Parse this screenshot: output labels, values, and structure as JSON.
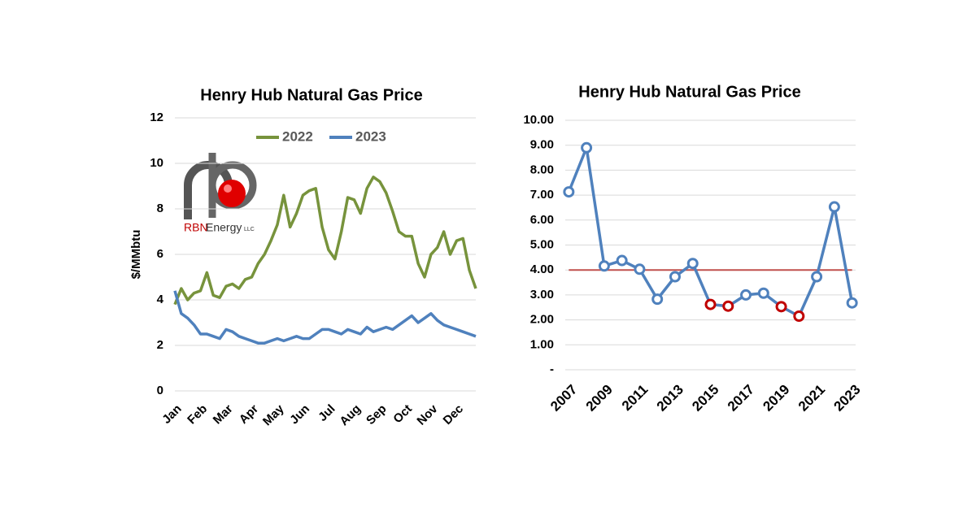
{
  "logo": {
    "name": "RBN",
    "text": "Energy",
    "suffix": "LLC"
  },
  "chart_data": [
    {
      "type": "line",
      "title": "Henry Hub Natural Gas Price",
      "y_label": "$/MMbtu",
      "categories": [
        "Jan",
        null,
        null,
        null,
        "Feb",
        null,
        null,
        null,
        "Mar",
        null,
        null,
        null,
        "Apr",
        null,
        null,
        null,
        "May",
        null,
        null,
        null,
        "Jun",
        null,
        null,
        null,
        "Jul",
        null,
        null,
        null,
        "Aug",
        null,
        null,
        null,
        "Sep",
        null,
        null,
        null,
        "Oct",
        null,
        null,
        null,
        "Nov",
        null,
        null,
        null,
        "Dec",
        null,
        null,
        null
      ],
      "series": [
        {
          "name": "2022",
          "color": "#77933c",
          "values": [
            3.8,
            4.5,
            4.0,
            4.3,
            4.4,
            5.2,
            4.2,
            4.1,
            4.6,
            4.7,
            4.5,
            4.9,
            5.0,
            5.6,
            6.0,
            6.6,
            7.3,
            8.6,
            7.2,
            7.8,
            8.6,
            8.8,
            8.9,
            7.2,
            6.2,
            5.8,
            7.0,
            8.5,
            8.4,
            7.8,
            8.9,
            9.4,
            9.2,
            8.7,
            7.9,
            7.0,
            6.8,
            6.8,
            5.6,
            5.0,
            6.0,
            6.3,
            7.0,
            6.0,
            6.6,
            6.7,
            5.3,
            4.5
          ]
        },
        {
          "name": "2023",
          "color": "#4f81bd",
          "values": [
            4.4,
            3.4,
            3.2,
            2.9,
            2.5,
            2.5,
            2.4,
            2.3,
            2.7,
            2.6,
            2.4,
            2.3,
            2.2,
            2.1,
            2.1,
            2.2,
            2.3,
            2.2,
            2.3,
            2.4,
            2.3,
            2.3,
            2.5,
            2.7,
            2.7,
            2.6,
            2.5,
            2.7,
            2.6,
            2.5,
            2.8,
            2.6,
            2.7,
            2.8,
            2.7,
            2.9,
            3.1,
            3.3,
            3.0,
            3.2,
            3.4,
            3.1,
            2.9,
            2.8,
            2.7,
            2.6,
            2.5,
            2.4
          ]
        }
      ],
      "ylim": [
        0,
        12
      ],
      "yticks": [
        0,
        2,
        4,
        6,
        8,
        10,
        12
      ],
      "grid": true,
      "legend": "top"
    },
    {
      "type": "line",
      "title": "Henry Hub Natural Gas Price",
      "x": [
        2007,
        2008,
        2009,
        2010,
        2011,
        2012,
        2013,
        2014,
        2015,
        2016,
        2017,
        2018,
        2019,
        2020,
        2021,
        2022,
        2023
      ],
      "xlim": [
        2006.8,
        2023.2
      ],
      "xticks": [
        2007,
        2009,
        2011,
        2013,
        2015,
        2017,
        2019,
        2021,
        2023
      ],
      "series": [
        {
          "color": "#4f81bd",
          "values": [
            7.13,
            8.9,
            4.16,
            4.38,
            4.03,
            2.83,
            3.73,
            4.26,
            2.62,
            2.55,
            3.0,
            3.07,
            2.53,
            2.15,
            3.73,
            6.53,
            2.68
          ],
          "marker_colors": [
            "#4f81bd",
            "#4f81bd",
            "#4f81bd",
            "#4f81bd",
            "#4f81bd",
            "#4f81bd",
            "#4f81bd",
            "#4f81bd",
            "#c00000",
            "#c00000",
            "#4f81bd",
            "#4f81bd",
            "#c00000",
            "#c00000",
            "#4f81bd",
            "#4f81bd",
            "#4f81bd"
          ]
        }
      ],
      "reference_line": {
        "value": 4,
        "color": "#c0504d"
      },
      "ylim": [
        0,
        10
      ],
      "yticks": [
        {
          "value": 0,
          "label": "-"
        },
        {
          "value": 1,
          "label": "1.00"
        },
        {
          "value": 2,
          "label": "2.00"
        },
        {
          "value": 3,
          "label": "3.00"
        },
        {
          "value": 4,
          "label": "4.00"
        },
        {
          "value": 5,
          "label": "5.00"
        },
        {
          "value": 6,
          "label": "6.00"
        },
        {
          "value": 7,
          "label": "7.00"
        },
        {
          "value": 8,
          "label": "8.00"
        },
        {
          "value": 9,
          "label": "9.00"
        },
        {
          "value": 10,
          "label": "10.00"
        }
      ],
      "grid": true
    }
  ]
}
